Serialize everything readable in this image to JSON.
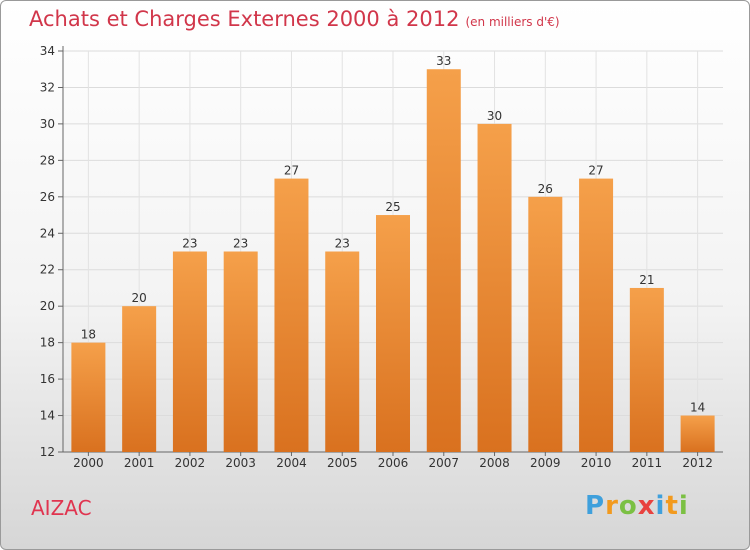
{
  "chart_data": {
    "type": "bar",
    "title": "Achats et Charges Externes 2000 à 2012",
    "subtitle": "(en milliers d'€)",
    "categories": [
      "2000",
      "2001",
      "2002",
      "2003",
      "2004",
      "2005",
      "2006",
      "2007",
      "2008",
      "2009",
      "2010",
      "2011",
      "2012"
    ],
    "values": [
      18,
      20,
      23,
      23,
      27,
      23,
      25,
      33,
      30,
      26,
      27,
      21,
      14
    ],
    "ylim": [
      12,
      34
    ],
    "yticks": [
      12,
      14,
      16,
      18,
      20,
      22,
      24,
      26,
      28,
      30,
      32,
      34
    ],
    "grid": true,
    "bar_color": "#f5a04a",
    "bar_color_dark": "#d9711f"
  },
  "commune": "AIZAC",
  "logo": {
    "text": "Proxiti",
    "letters": [
      "P",
      "r",
      "o",
      "x",
      "i",
      "t",
      "i"
    ],
    "colors": [
      "#3fa0dc",
      "#f29a1e",
      "#7bc043",
      "#e8423f",
      "#3fa0dc",
      "#f29a1e",
      "#7bc043"
    ]
  }
}
